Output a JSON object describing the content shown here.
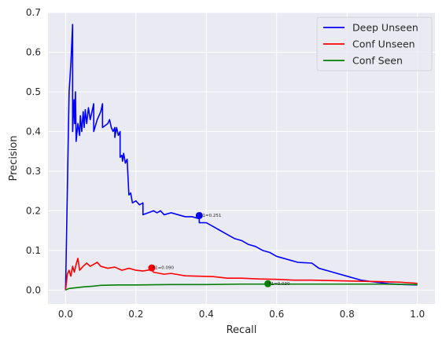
{
  "chart_data": {
    "type": "line",
    "xlabel": "Recall",
    "ylabel": "Precision",
    "xlim": [
      -0.05,
      1.05
    ],
    "ylim": [
      -0.035,
      0.7
    ],
    "xticks": [
      0.0,
      0.2,
      0.4,
      0.6,
      0.8,
      1.0
    ],
    "xtick_labels": [
      "0.0",
      "0.2",
      "0.4",
      "0.6",
      "0.8",
      "1.0"
    ],
    "yticks": [
      0.0,
      0.1,
      0.2,
      0.3,
      0.4,
      0.5,
      0.6,
      0.7
    ],
    "ytick_labels": [
      "0.0",
      "0.1",
      "0.2",
      "0.3",
      "0.4",
      "0.5",
      "0.6",
      "0.7"
    ],
    "grid": true,
    "legend_position": "top-right",
    "series": [
      {
        "name": "Deep Unseen",
        "color": "#0000ff",
        "points": [
          [
            0.0,
            0.0
          ],
          [
            0.006,
            0.3
          ],
          [
            0.01,
            0.5
          ],
          [
            0.015,
            0.57
          ],
          [
            0.02,
            0.67
          ],
          [
            0.02,
            0.4
          ],
          [
            0.024,
            0.48
          ],
          [
            0.026,
            0.42
          ],
          [
            0.028,
            0.5
          ],
          [
            0.03,
            0.375
          ],
          [
            0.035,
            0.42
          ],
          [
            0.04,
            0.39
          ],
          [
            0.042,
            0.44
          ],
          [
            0.046,
            0.4
          ],
          [
            0.05,
            0.45
          ],
          [
            0.053,
            0.41
          ],
          [
            0.056,
            0.455
          ],
          [
            0.06,
            0.42
          ],
          [
            0.065,
            0.46
          ],
          [
            0.07,
            0.43
          ],
          [
            0.075,
            0.45
          ],
          [
            0.08,
            0.47
          ],
          [
            0.08,
            0.4
          ],
          [
            0.09,
            0.43
          ],
          [
            0.1,
            0.45
          ],
          [
            0.105,
            0.47
          ],
          [
            0.105,
            0.41
          ],
          [
            0.12,
            0.42
          ],
          [
            0.125,
            0.43
          ],
          [
            0.13,
            0.41
          ],
          [
            0.135,
            0.4
          ],
          [
            0.14,
            0.41
          ],
          [
            0.14,
            0.385
          ],
          [
            0.145,
            0.41
          ],
          [
            0.15,
            0.39
          ],
          [
            0.155,
            0.4
          ],
          [
            0.155,
            0.335
          ],
          [
            0.16,
            0.34
          ],
          [
            0.162,
            0.325
          ],
          [
            0.165,
            0.345
          ],
          [
            0.17,
            0.32
          ],
          [
            0.175,
            0.33
          ],
          [
            0.18,
            0.24
          ],
          [
            0.185,
            0.245
          ],
          [
            0.19,
            0.22
          ],
          [
            0.2,
            0.225
          ],
          [
            0.21,
            0.215
          ],
          [
            0.22,
            0.22
          ],
          [
            0.22,
            0.19
          ],
          [
            0.25,
            0.2
          ],
          [
            0.26,
            0.195
          ],
          [
            0.27,
            0.2
          ],
          [
            0.28,
            0.19
          ],
          [
            0.3,
            0.195
          ],
          [
            0.32,
            0.19
          ],
          [
            0.34,
            0.185
          ],
          [
            0.36,
            0.185
          ],
          [
            0.38,
            0.18
          ],
          [
            0.38,
            0.17
          ],
          [
            0.4,
            0.17
          ],
          [
            0.42,
            0.16
          ],
          [
            0.44,
            0.15
          ],
          [
            0.46,
            0.14
          ],
          [
            0.48,
            0.13
          ],
          [
            0.5,
            0.125
          ],
          [
            0.52,
            0.115
          ],
          [
            0.54,
            0.11
          ],
          [
            0.56,
            0.1
          ],
          [
            0.58,
            0.095
          ],
          [
            0.6,
            0.085
          ],
          [
            0.62,
            0.08
          ],
          [
            0.66,
            0.07
          ],
          [
            0.7,
            0.068
          ],
          [
            0.72,
            0.055
          ],
          [
            0.76,
            0.045
          ],
          [
            0.8,
            0.035
          ],
          [
            0.82,
            0.03
          ],
          [
            0.84,
            0.025
          ],
          [
            0.88,
            0.02
          ],
          [
            0.92,
            0.016
          ],
          [
            0.96,
            0.014
          ],
          [
            1.0,
            0.013
          ]
        ],
        "marker": [
          0.38,
          0.188
        ],
        "annotation": "F1=0.251"
      },
      {
        "name": "Conf Unseen",
        "color": "#ff0000",
        "points": [
          [
            0.0,
            0.0
          ],
          [
            0.005,
            0.04
          ],
          [
            0.01,
            0.05
          ],
          [
            0.015,
            0.035
          ],
          [
            0.02,
            0.06
          ],
          [
            0.025,
            0.045
          ],
          [
            0.03,
            0.065
          ],
          [
            0.035,
            0.08
          ],
          [
            0.04,
            0.05
          ],
          [
            0.05,
            0.06
          ],
          [
            0.06,
            0.068
          ],
          [
            0.07,
            0.06
          ],
          [
            0.08,
            0.065
          ],
          [
            0.09,
            0.07
          ],
          [
            0.1,
            0.06
          ],
          [
            0.12,
            0.055
          ],
          [
            0.14,
            0.058
          ],
          [
            0.16,
            0.05
          ],
          [
            0.18,
            0.055
          ],
          [
            0.2,
            0.05
          ],
          [
            0.22,
            0.048
          ],
          [
            0.245,
            0.052
          ],
          [
            0.25,
            0.045
          ],
          [
            0.28,
            0.04
          ],
          [
            0.3,
            0.042
          ],
          [
            0.34,
            0.036
          ],
          [
            0.38,
            0.035
          ],
          [
            0.42,
            0.034
          ],
          [
            0.46,
            0.03
          ],
          [
            0.5,
            0.03
          ],
          [
            0.55,
            0.028
          ],
          [
            0.6,
            0.027
          ],
          [
            0.65,
            0.025
          ],
          [
            0.7,
            0.025
          ],
          [
            0.75,
            0.024
          ],
          [
            0.8,
            0.023
          ],
          [
            0.85,
            0.022
          ],
          [
            0.9,
            0.021
          ],
          [
            0.95,
            0.02
          ],
          [
            1.0,
            0.017
          ]
        ],
        "marker": [
          0.245,
          0.056
        ],
        "annotation": "F1=0.090"
      },
      {
        "name": "Conf Seen",
        "color": "#008000",
        "points": [
          [
            0.0,
            0.0
          ],
          [
            0.01,
            0.004
          ],
          [
            0.03,
            0.006
          ],
          [
            0.05,
            0.008
          ],
          [
            0.08,
            0.01
          ],
          [
            0.1,
            0.012
          ],
          [
            0.15,
            0.013
          ],
          [
            0.2,
            0.013
          ],
          [
            0.3,
            0.014
          ],
          [
            0.4,
            0.014
          ],
          [
            0.5,
            0.015
          ],
          [
            0.57,
            0.015
          ],
          [
            0.6,
            0.015
          ],
          [
            0.7,
            0.015
          ],
          [
            0.8,
            0.015
          ],
          [
            0.9,
            0.015
          ],
          [
            1.0,
            0.014
          ]
        ],
        "marker": [
          0.575,
          0.016
        ],
        "annotation": "F1=0.030"
      }
    ]
  }
}
